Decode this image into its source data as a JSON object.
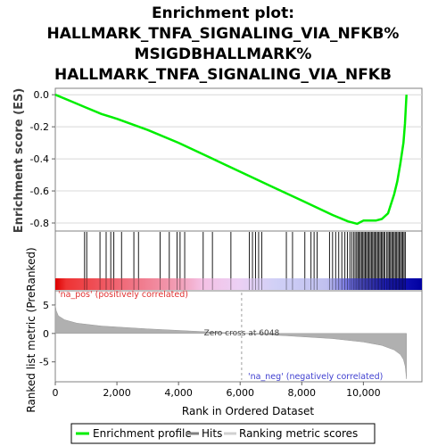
{
  "chart_data": {
    "type": "line",
    "title_lines": [
      "Enrichment plot:",
      "HALLMARK_TNFA_SIGNALING_VIA_NFKB%",
      "MSIGDBHALLMARK%",
      "HALLMARK_TNFA_SIGNALING_VIA_NFKB"
    ],
    "xlabel": "Rank in Ordered Dataset",
    "xlim": [
      0,
      11900
    ],
    "x_ticks": [
      0,
      2000,
      4000,
      6000,
      8000,
      10000
    ],
    "x_tick_labels": [
      "0",
      "2,000",
      "4,000",
      "6,000",
      "8,000",
      "10,000"
    ],
    "panels": {
      "enrichment": {
        "ylabel": "Enrichment score (ES)",
        "ylim": [
          -0.85,
          0.04
        ],
        "y_ticks": [
          0.0,
          -0.2,
          -0.4,
          -0.6,
          -0.8
        ],
        "y_tick_labels": [
          "0.0",
          "-0.2",
          "-0.4",
          "-0.6",
          "-0.8"
        ],
        "series": [
          {
            "name": "Enrichment profile",
            "color": "#00ee00",
            "x": [
              0,
              500,
              1000,
              1500,
              2000,
              3000,
              4000,
              5000,
              6000,
              7000,
              8000,
              9000,
              9500,
              9800,
              10000,
              10400,
              10600,
              10800,
              11000,
              11100,
              11200,
              11300,
              11350,
              11400
            ],
            "y": [
              0.0,
              -0.04,
              -0.08,
              -0.12,
              -0.15,
              -0.22,
              -0.3,
              -0.39,
              -0.48,
              -0.57,
              -0.66,
              -0.75,
              -0.79,
              -0.805,
              -0.785,
              -0.785,
              -0.775,
              -0.74,
              -0.62,
              -0.54,
              -0.43,
              -0.3,
              -0.18,
              0.0
            ]
          }
        ]
      },
      "hits": {
        "legend_label": "Hits",
        "positions": [
          950,
          1020,
          1450,
          1650,
          1800,
          1900,
          2150,
          2550,
          2700,
          3400,
          3700,
          3950,
          4050,
          4200,
          4800,
          5100,
          5700,
          6300,
          6400,
          6500,
          6600,
          6700,
          7500,
          7700,
          8100,
          8300,
          8400,
          8500,
          8900,
          9000,
          9100,
          9200,
          9300,
          9400,
          9480,
          9560,
          9620,
          9680,
          9730,
          9780,
          9820,
          9860,
          9900,
          9940,
          9980,
          10020,
          10060,
          10100,
          10140,
          10180,
          10220,
          10260,
          10300,
          10340,
          10380,
          10420,
          10460,
          10500,
          10540,
          10580,
          10620,
          10660,
          10700,
          10760,
          10800,
          10840,
          10880,
          10920,
          10960,
          11000,
          11040,
          11080,
          11120,
          11160,
          11200,
          11240,
          11280,
          11320,
          11360
        ]
      },
      "ranked": {
        "ylabel": "Ranked list metric (PreRanked)",
        "ylim": [
          -8.5,
          7.5
        ],
        "y_ticks": [
          5,
          0,
          -5
        ],
        "y_tick_labels": [
          "5",
          "0",
          "-5"
        ],
        "legend_label": "Ranking metric scores",
        "x": [
          0,
          30,
          100,
          300,
          700,
          1500,
          3000,
          4500,
          6048,
          7500,
          9000,
          10000,
          10600,
          11000,
          11200,
          11300,
          11360,
          11400
        ],
        "y": [
          5.0,
          4.0,
          3.1,
          2.4,
          1.8,
          1.3,
          0.8,
          0.4,
          0.0,
          -0.4,
          -0.9,
          -1.5,
          -2.1,
          -2.9,
          -3.7,
          -4.6,
          -5.8,
          -8.0
        ],
        "zero_cross_label": "Zero cross at 6048",
        "zero_cross_x": 6048,
        "pos_label": "'na_pos' (positively correlated)",
        "neg_label": "'na_neg' (negatively correlated)"
      }
    },
    "legend": {
      "placement": "bottom",
      "entries": [
        "Enrichment profile",
        "Hits",
        "Ranking metric scores"
      ]
    },
    "colors": {
      "profile": "#00ee00",
      "pos_label": "#e03030",
      "neg_label": "#4040d0",
      "gradient": [
        "#dd0000",
        "#f06070",
        "#f4b8e0",
        "#dcd0f4",
        "#9090ee",
        "#1010c0",
        "#0000a0"
      ]
    }
  }
}
